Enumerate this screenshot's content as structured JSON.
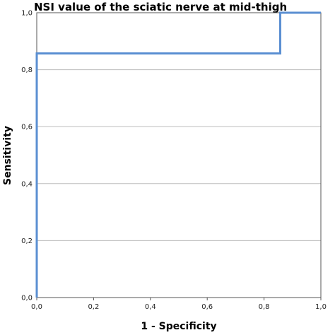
{
  "chart_data": {
    "type": "line",
    "title": "NSI value of the sciatic nerve at mid-thigh",
    "xlabel": "1 - Specificity",
    "ylabel": "Sensitivity",
    "xlim": [
      0,
      1
    ],
    "ylim": [
      0,
      1
    ],
    "x_ticks": [
      "0,0",
      "0,2",
      "0,4",
      "0,6",
      "0,8",
      "1,0"
    ],
    "y_ticks": [
      "0,0",
      "0,2",
      "0,4",
      "0,6",
      "0,8",
      "1,0"
    ],
    "grid": "horizontal",
    "series": [
      {
        "x": [
          0,
          0,
          0.857,
          0.857,
          1
        ],
        "y": [
          0,
          0.857,
          0.857,
          1,
          1
        ]
      }
    ]
  },
  "colors": {
    "series": "#5b8fd2",
    "grid": "#bdbdbd",
    "axis": "#555555"
  }
}
